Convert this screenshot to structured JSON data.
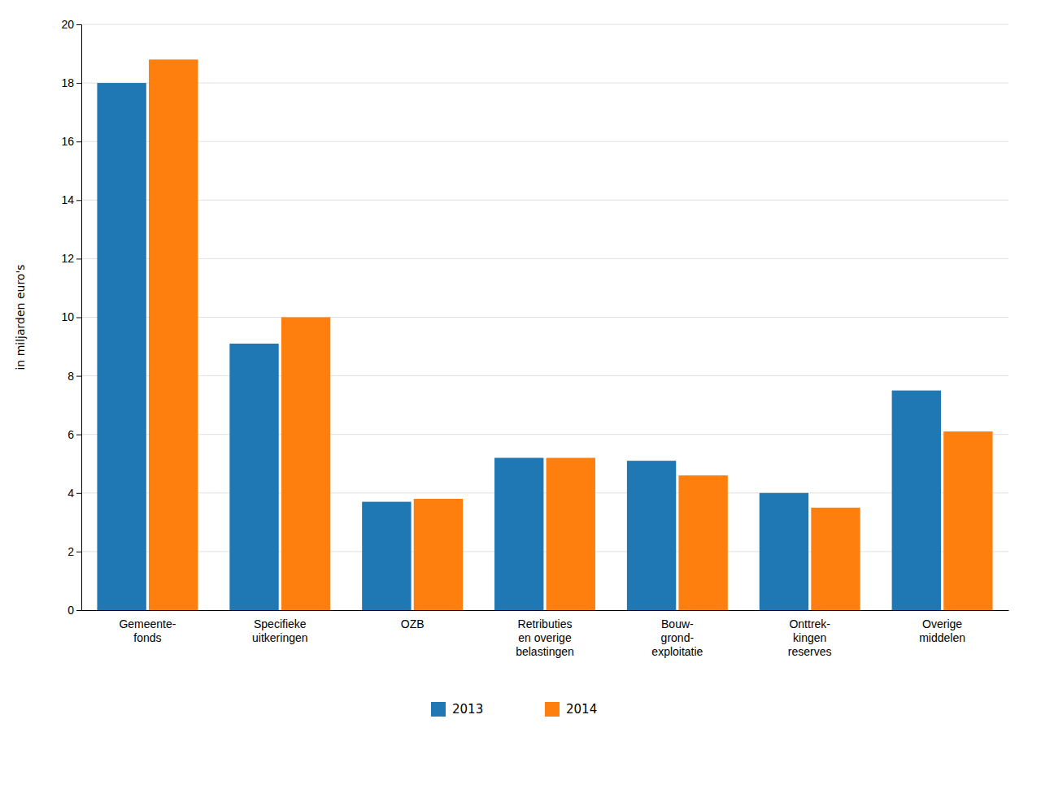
{
  "chart_data": {
    "type": "bar",
    "categories": [
      "Gemeente-\nfonds",
      "Specifieke\nuitkeringen",
      "OZB",
      "Retributies\nen overige\nbelastingen",
      "Bouw-\ngrond-\nexploitatie",
      "Onttrek-\nkingen\nreserves",
      "Overige\nmiddelen"
    ],
    "series": [
      {
        "name": "2013",
        "values": [
          18.0,
          9.1,
          3.7,
          5.2,
          5.1,
          4.0,
          7.5
        ]
      },
      {
        "name": "2014",
        "values": [
          18.8,
          10.0,
          3.8,
          5.2,
          4.6,
          3.5,
          6.1
        ]
      }
    ],
    "ylabel": "in miljarden euro's",
    "ylim": [
      0,
      20
    ],
    "yticks": [
      0,
      2,
      4,
      6,
      8,
      10,
      12,
      14,
      16,
      18,
      20
    ],
    "grid": true,
    "legend": "bottom"
  }
}
